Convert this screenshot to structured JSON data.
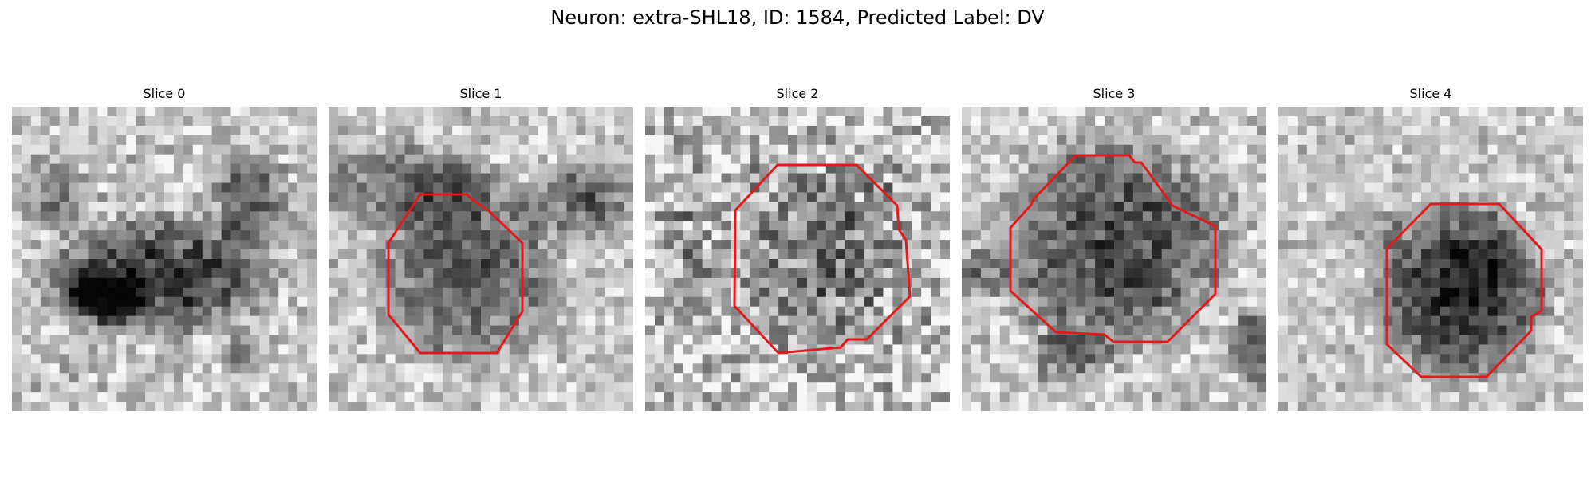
{
  "figure": {
    "title": "Neuron: extra-SHL18, ID: 1584, Predicted Label: DV"
  },
  "colors": {
    "background": "#ffffff",
    "contour": "#e31a1c",
    "colormap": "grayscale"
  },
  "panels": [
    {
      "title": "Slice 0",
      "has_contour": false,
      "content": "grayscale noisy microscopy patch"
    },
    {
      "title": "Slice 1",
      "has_contour": true,
      "content": "grayscale noisy microscopy patch with red octagonal contour"
    },
    {
      "title": "Slice 2",
      "has_contour": true,
      "content": "grayscale noisy microscopy patch with red octagonal contour"
    },
    {
      "title": "Slice 3",
      "has_contour": true,
      "content": "grayscale noisy microscopy patch with red octagonal contour"
    },
    {
      "title": "Slice 4",
      "has_contour": true,
      "content": "grayscale noisy microscopy patch with red octagonal contour"
    }
  ]
}
